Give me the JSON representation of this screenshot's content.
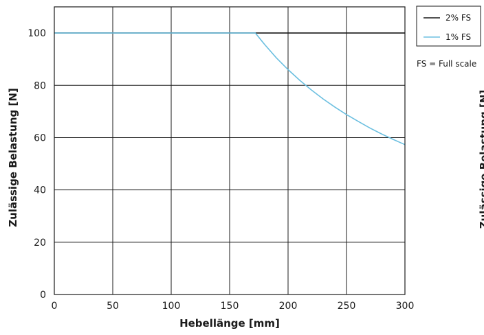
{
  "chart_data": {
    "type": "line",
    "title": "",
    "xlabel": "Hebellänge [mm]",
    "ylabel": "Zulässige Belastung [N]",
    "xlim": [
      0,
      300
    ],
    "ylim": [
      0,
      110
    ],
    "xticks": [
      0,
      50,
      100,
      150,
      200,
      250,
      300
    ],
    "yticks": [
      0,
      20,
      40,
      60,
      80,
      100
    ],
    "grid": true,
    "legend_position": "top-right",
    "series": [
      {
        "name": "2% FS",
        "color": "#1a1a1a",
        "x": [
          0,
          50,
          100,
          150,
          172,
          200,
          250,
          300
        ],
        "y": [
          100,
          100,
          100,
          100,
          100,
          100,
          100,
          100
        ]
      },
      {
        "name": "1% FS",
        "color": "#6bbfe0",
        "x": [
          0,
          50,
          100,
          150,
          172,
          180,
          190,
          200,
          210,
          220,
          230,
          240,
          250,
          260,
          270,
          280,
          290,
          300
        ],
        "y": [
          100,
          100,
          100,
          100,
          100,
          95.6,
          90.5,
          86.0,
          81.9,
          78.2,
          74.8,
          71.7,
          68.8,
          66.2,
          63.7,
          61.4,
          59.3,
          57.3
        ]
      }
    ],
    "note": "FS = Full scale",
    "right_cut_text": "Zulässige Belastung [N]"
  }
}
